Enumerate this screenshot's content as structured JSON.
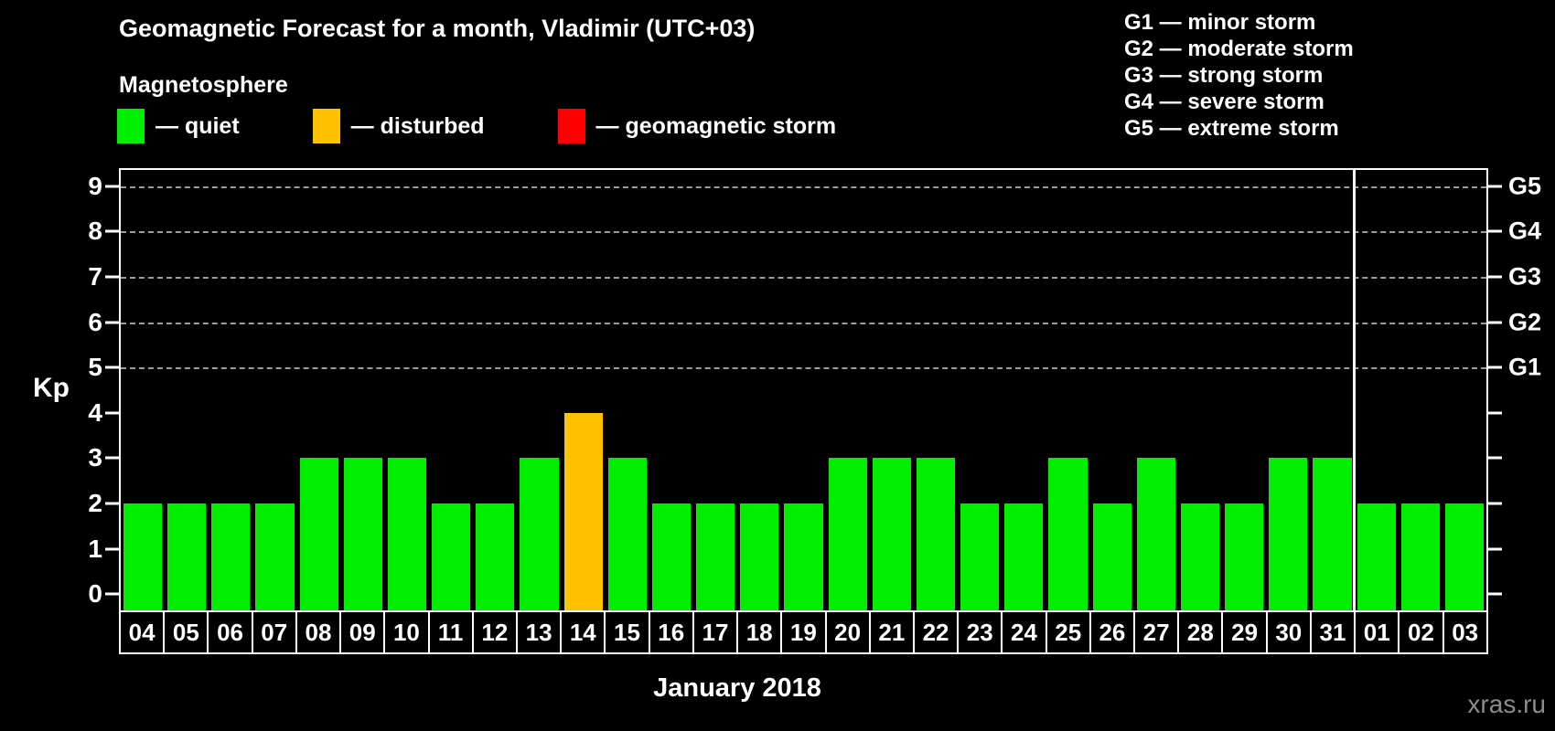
{
  "header": {
    "title": "Geomagnetic Forecast for a month, Vladimir (UTC+03)",
    "subtitle": "Magnetosphere"
  },
  "magnetosphere_legend": [
    {
      "state": "quiet",
      "label": "— quiet",
      "color": "#00ee00"
    },
    {
      "state": "disturbed",
      "label": "— disturbed",
      "color": "#ffc200"
    },
    {
      "state": "storm",
      "label": "— geomagnetic storm",
      "color": "#ff0000"
    }
  ],
  "g_scale_legend": [
    "G1 — minor storm",
    "G2 — moderate storm",
    "G3 — strong storm",
    "G4 — severe storm",
    "G5 — extreme storm"
  ],
  "chart_data": {
    "type": "bar",
    "title": "Geomagnetic Forecast for a month, Vladimir (UTC+03)",
    "ylabel": "Kp",
    "xlabel": "January 2018",
    "y_ticks": [
      0,
      1,
      2,
      3,
      4,
      5,
      6,
      7,
      8,
      9
    ],
    "y_range": [
      -0.36,
      9.36
    ],
    "gridlines_at": [
      5,
      6,
      7,
      8,
      9
    ],
    "grid": "dashed-horizontal",
    "legend_position": "top-left",
    "right_axis": [
      {
        "kp": 5,
        "label": "G1"
      },
      {
        "kp": 6,
        "label": "G2"
      },
      {
        "kp": 7,
        "label": "G3"
      },
      {
        "kp": 8,
        "label": "G4"
      },
      {
        "kp": 9,
        "label": "G5"
      }
    ],
    "categories": [
      "04",
      "05",
      "06",
      "07",
      "08",
      "09",
      "10",
      "11",
      "12",
      "13",
      "14",
      "15",
      "16",
      "17",
      "18",
      "19",
      "20",
      "21",
      "22",
      "23",
      "24",
      "25",
      "26",
      "27",
      "28",
      "29",
      "30",
      "31",
      "01",
      "02",
      "03"
    ],
    "values": [
      2,
      2,
      2,
      2,
      3,
      3,
      3,
      2,
      2,
      3,
      4,
      3,
      2,
      2,
      2,
      2,
      3,
      3,
      3,
      2,
      2,
      3,
      2,
      3,
      2,
      2,
      3,
      3,
      2,
      2,
      2
    ],
    "states": [
      "quiet",
      "quiet",
      "quiet",
      "quiet",
      "quiet",
      "quiet",
      "quiet",
      "quiet",
      "quiet",
      "quiet",
      "disturbed",
      "quiet",
      "quiet",
      "quiet",
      "quiet",
      "quiet",
      "quiet",
      "quiet",
      "quiet",
      "quiet",
      "quiet",
      "quiet",
      "quiet",
      "quiet",
      "quiet",
      "quiet",
      "quiet",
      "quiet",
      "quiet",
      "quiet",
      "quiet"
    ],
    "month_separator_after": "31"
  },
  "footer": {
    "month_label": "January 2018",
    "watermark": "xras.ru"
  }
}
